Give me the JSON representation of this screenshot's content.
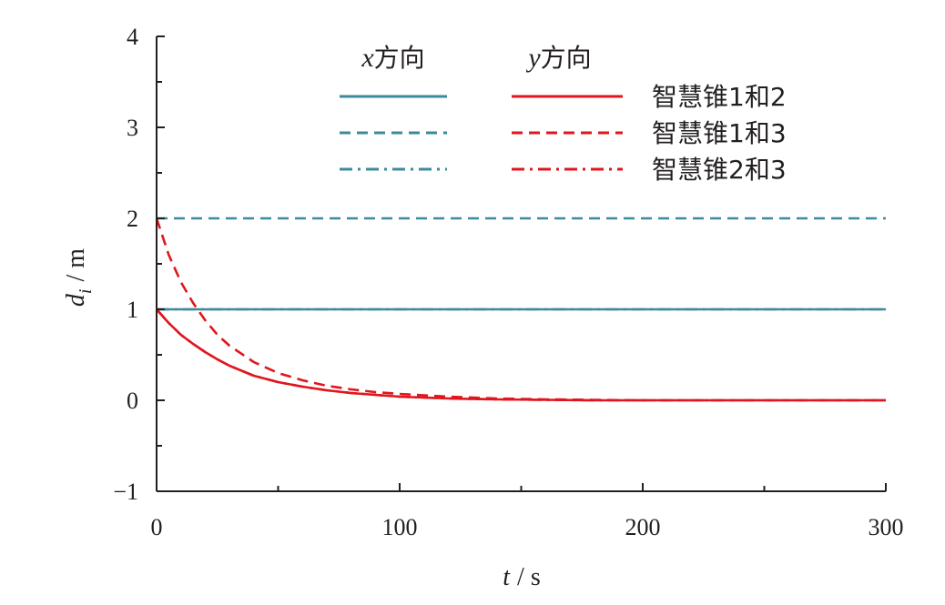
{
  "chart_data": {
    "type": "line",
    "xlabel_var": "t",
    "xlabel_unit": "/ s",
    "ylabel_var": "d",
    "ylabel_sub": "i",
    "ylabel_unit": "/ m",
    "xlim": [
      0,
      300
    ],
    "ylim": [
      -1,
      4
    ],
    "x_ticks": [
      0,
      100,
      200,
      300
    ],
    "x_tick_labels": [
      "0",
      "100",
      "200",
      "300"
    ],
    "y_ticks": [
      -1,
      0,
      1,
      2,
      3,
      4
    ],
    "y_tick_labels": [
      "−1",
      "0",
      "1",
      "2",
      "3",
      "4"
    ],
    "grid": false,
    "legend_position": "top",
    "legend_headers": [
      {
        "var": "x",
        "text": "方向"
      },
      {
        "var": "y",
        "text": "方向"
      }
    ],
    "legend_rows": [
      "智慧锥1和2",
      "智慧锥1和3",
      "智慧锥2和3"
    ],
    "colors": {
      "x": "#3c8a9c",
      "y": "#e0161e"
    },
    "series": [
      {
        "direction": "x",
        "pair": "智慧锥1和2",
        "dash": "solid",
        "x": [
          0,
          300
        ],
        "y": [
          1,
          1
        ]
      },
      {
        "direction": "x",
        "pair": "智慧锥1和3",
        "dash": "dashed",
        "x": [
          0,
          300
        ],
        "y": [
          2,
          2
        ]
      },
      {
        "direction": "x",
        "pair": "智慧锥2和3",
        "dash": "dashdot",
        "x": [
          0,
          300
        ],
        "y": [
          1,
          1
        ]
      },
      {
        "direction": "y",
        "pair": "智慧锥1和2",
        "dash": "solid",
        "x": [
          0,
          5,
          10,
          15,
          20,
          25,
          30,
          40,
          50,
          60,
          70,
          80,
          90,
          100,
          120,
          140,
          160,
          180,
          200,
          250,
          300
        ],
        "y": [
          1.0,
          0.85,
          0.72,
          0.62,
          0.53,
          0.45,
          0.38,
          0.27,
          0.2,
          0.15,
          0.11,
          0.08,
          0.06,
          0.04,
          0.02,
          0.01,
          0.005,
          0.0,
          0.0,
          0.0,
          0.0
        ]
      },
      {
        "direction": "y",
        "pair": "智慧锥1和3",
        "dash": "dashed",
        "x": [
          0,
          5,
          10,
          15,
          20,
          25,
          30,
          40,
          50,
          60,
          70,
          80,
          90,
          100,
          120,
          140,
          160,
          180,
          200,
          250,
          300
        ],
        "y": [
          2.0,
          1.6,
          1.3,
          1.07,
          0.88,
          0.72,
          0.6,
          0.42,
          0.3,
          0.22,
          0.16,
          0.12,
          0.09,
          0.07,
          0.04,
          0.02,
          0.01,
          0.005,
          0.0,
          0.0,
          0.0
        ]
      },
      {
        "direction": "y",
        "pair": "智慧锥2和3",
        "dash": "dashdot",
        "x": [
          0,
          5,
          10,
          15,
          20,
          25,
          30,
          40,
          50,
          60,
          70,
          80,
          90,
          100,
          120,
          140,
          160,
          180,
          200,
          250,
          300
        ],
        "y": [
          1.0,
          0.85,
          0.72,
          0.62,
          0.53,
          0.45,
          0.38,
          0.27,
          0.2,
          0.15,
          0.11,
          0.08,
          0.06,
          0.04,
          0.02,
          0.01,
          0.005,
          0.0,
          0.0,
          0.0,
          0.0
        ]
      }
    ]
  }
}
